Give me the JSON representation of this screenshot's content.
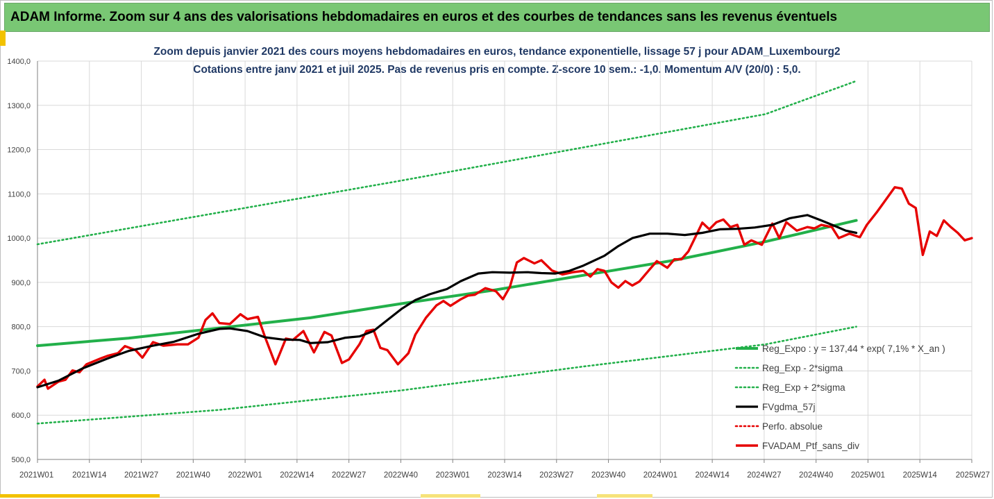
{
  "banner": {
    "title": "ADAM Informe. Zoom sur 4 ans des valorisations hebdomadaires en euros et des courbes de tendances sans les revenus éventuels"
  },
  "colors": {
    "banner_bg": "#79c774",
    "accent_yellow": "#f2c200",
    "title_text": "#1f3864",
    "regression": "#22b04a",
    "sigma_bands": "#22b04a",
    "moving_average": "#000000",
    "perf_absolue": "#e60000",
    "portfolio": "#e60000",
    "grid": "#d9d9d9"
  },
  "chart_data": {
    "type": "line",
    "title": "Zoom depuis janvier 2021 des cours moyens hebdomadaires  en euros, tendance exponentielle, lissage 57 j pour ADAM_Luxembourg2",
    "subtitle": "Cotations  entre janv 2021 et juil 2025. Pas de revenus pris en compte. Z-score 10 sem.: -1,0. Momentum  A/V (20/0) : 5,0.",
    "xlabel": "",
    "ylabel": "",
    "ylim": [
      500,
      1400
    ],
    "yticks": [
      "500,0",
      "600,0",
      "700,0",
      "800,0",
      "900,0",
      "1000,0",
      "1100,0",
      "1200,0",
      "1300,0",
      "1400,0"
    ],
    "xticks": [
      "2021W01",
      "2021W14",
      "2021W27",
      "2021W40",
      "2022W01",
      "2022W14",
      "2022W27",
      "2022W40",
      "2023W01",
      "2023W14",
      "2023W27",
      "2023W40",
      "2024W01",
      "2024W14",
      "2024W27",
      "2024W40",
      "2025W01",
      "2025W14",
      "2025W27"
    ],
    "x_range_weeks": [
      0,
      234
    ],
    "grid": true,
    "legend_position": "bottom-right",
    "series": [
      {
        "name": "Reg_Expo : y = 137,44 * exp( 7,1% *  X_an )",
        "style": "solid-thick",
        "points": [
          [
            0,
            757
          ],
          [
            26,
            774
          ],
          [
            52,
            797
          ],
          [
            78,
            820
          ],
          [
            104,
            852
          ],
          [
            130,
            882
          ],
          [
            156,
            916
          ],
          [
            182,
            950
          ],
          [
            208,
            992
          ],
          [
            234,
            1040
          ]
        ]
      },
      {
        "name": "Reg_Exp - 2*sigma",
        "style": "dotted",
        "points": [
          [
            0,
            581
          ],
          [
            52,
            612
          ],
          [
            104,
            656
          ],
          [
            156,
            710
          ],
          [
            208,
            760
          ],
          [
            234,
            800
          ]
        ]
      },
      {
        "name": "Reg_Exp + 2*sigma",
        "style": "dotted",
        "points": [
          [
            0,
            986
          ],
          [
            52,
            1058
          ],
          [
            104,
            1130
          ],
          [
            156,
            1205
          ],
          [
            208,
            1280
          ],
          [
            234,
            1355
          ]
        ]
      },
      {
        "name": "FVgdma_57j",
        "style": "solid",
        "points": [
          [
            0,
            663
          ],
          [
            6,
            678
          ],
          [
            13,
            706
          ],
          [
            20,
            728
          ],
          [
            26,
            745
          ],
          [
            33,
            757
          ],
          [
            39,
            766
          ],
          [
            46,
            784
          ],
          [
            52,
            795
          ],
          [
            55,
            796
          ],
          [
            60,
            790
          ],
          [
            65,
            776
          ],
          [
            70,
            771
          ],
          [
            75,
            770
          ],
          [
            78,
            763
          ],
          [
            83,
            765
          ],
          [
            88,
            775
          ],
          [
            92,
            778
          ],
          [
            96,
            790
          ],
          [
            100,
            815
          ],
          [
            104,
            840
          ],
          [
            108,
            860
          ],
          [
            112,
            873
          ],
          [
            117,
            885
          ],
          [
            121,
            903
          ],
          [
            126,
            920
          ],
          [
            130,
            923
          ],
          [
            135,
            922
          ],
          [
            140,
            923
          ],
          [
            144,
            921
          ],
          [
            148,
            920
          ],
          [
            152,
            926
          ],
          [
            156,
            938
          ],
          [
            162,
            960
          ],
          [
            166,
            982
          ],
          [
            170,
            1000
          ],
          [
            175,
            1010
          ],
          [
            180,
            1010
          ],
          [
            185,
            1007
          ],
          [
            190,
            1012
          ],
          [
            195,
            1020
          ],
          [
            200,
            1021
          ],
          [
            205,
            1024
          ],
          [
            210,
            1030
          ],
          [
            215,
            1045
          ],
          [
            220,
            1052
          ],
          [
            224,
            1040
          ],
          [
            228,
            1027
          ],
          [
            231,
            1017
          ],
          [
            234,
            1012
          ]
        ]
      },
      {
        "name": "Perfo. absolue",
        "style": "dotted",
        "points": []
      },
      {
        "name": "FVADAM_Ptf_sans_div",
        "style": "solid-thick",
        "points": [
          [
            0,
            665
          ],
          [
            2,
            680
          ],
          [
            3,
            660
          ],
          [
            6,
            676
          ],
          [
            8,
            680
          ],
          [
            10,
            701
          ],
          [
            12,
            697
          ],
          [
            14,
            715
          ],
          [
            18,
            728
          ],
          [
            20,
            734
          ],
          [
            23,
            740
          ],
          [
            25,
            756
          ],
          [
            28,
            747
          ],
          [
            30,
            730
          ],
          [
            33,
            765
          ],
          [
            36,
            757
          ],
          [
            40,
            760
          ],
          [
            43,
            760
          ],
          [
            46,
            775
          ],
          [
            48,
            815
          ],
          [
            50,
            830
          ],
          [
            52,
            808
          ],
          [
            55,
            806
          ],
          [
            58,
            828
          ],
          [
            60,
            817
          ],
          [
            63,
            822
          ],
          [
            65,
            777
          ],
          [
            68,
            715
          ],
          [
            71,
            773
          ],
          [
            73,
            770
          ],
          [
            76,
            790
          ],
          [
            79,
            742
          ],
          [
            82,
            788
          ],
          [
            84,
            780
          ],
          [
            87,
            718
          ],
          [
            89,
            726
          ],
          [
            92,
            760
          ],
          [
            94,
            790
          ],
          [
            96,
            793
          ],
          [
            98,
            752
          ],
          [
            100,
            747
          ],
          [
            103,
            715
          ],
          [
            106,
            740
          ],
          [
            108,
            782
          ],
          [
            111,
            820
          ],
          [
            114,
            848
          ],
          [
            116,
            858
          ],
          [
            118,
            847
          ],
          [
            121,
            862
          ],
          [
            123,
            870
          ],
          [
            125,
            872
          ],
          [
            128,
            887
          ],
          [
            131,
            880
          ],
          [
            133,
            862
          ],
          [
            135,
            890
          ],
          [
            137,
            945
          ],
          [
            139,
            955
          ],
          [
            142,
            943
          ],
          [
            144,
            950
          ],
          [
            147,
            927
          ],
          [
            150,
            918
          ],
          [
            153,
            923
          ],
          [
            156,
            926
          ],
          [
            158,
            913
          ],
          [
            160,
            930
          ],
          [
            162,
            926
          ],
          [
            164,
            900
          ],
          [
            166,
            888
          ],
          [
            168,
            903
          ],
          [
            170,
            893
          ],
          [
            172,
            902
          ],
          [
            175,
            930
          ],
          [
            177,
            948
          ],
          [
            180,
            933
          ],
          [
            182,
            952
          ],
          [
            184,
            952
          ],
          [
            186,
            970
          ],
          [
            188,
            1002
          ],
          [
            190,
            1035
          ],
          [
            192,
            1020
          ],
          [
            194,
            1036
          ],
          [
            196,
            1042
          ],
          [
            198,
            1025
          ],
          [
            200,
            1030
          ],
          [
            202,
            985
          ],
          [
            204,
            995
          ],
          [
            207,
            985
          ],
          [
            210,
            1033
          ],
          [
            212,
            1000
          ],
          [
            214,
            1036
          ],
          [
            217,
            1017
          ],
          [
            220,
            1025
          ],
          [
            222,
            1022
          ],
          [
            224,
            1030
          ],
          [
            227,
            1025
          ],
          [
            229,
            1000
          ],
          [
            232,
            1010
          ],
          [
            235,
            1002
          ],
          [
            237,
            1030
          ],
          [
            240,
            1060
          ],
          [
            242,
            1082
          ],
          [
            245,
            1115
          ],
          [
            247,
            1112
          ],
          [
            249,
            1078
          ],
          [
            251,
            1068
          ],
          [
            253,
            962
          ],
          [
            255,
            1015
          ],
          [
            257,
            1005
          ],
          [
            259,
            1040
          ],
          [
            261,
            1025
          ],
          [
            263,
            1012
          ],
          [
            265,
            995
          ],
          [
            267,
            1000
          ]
        ]
      }
    ]
  }
}
